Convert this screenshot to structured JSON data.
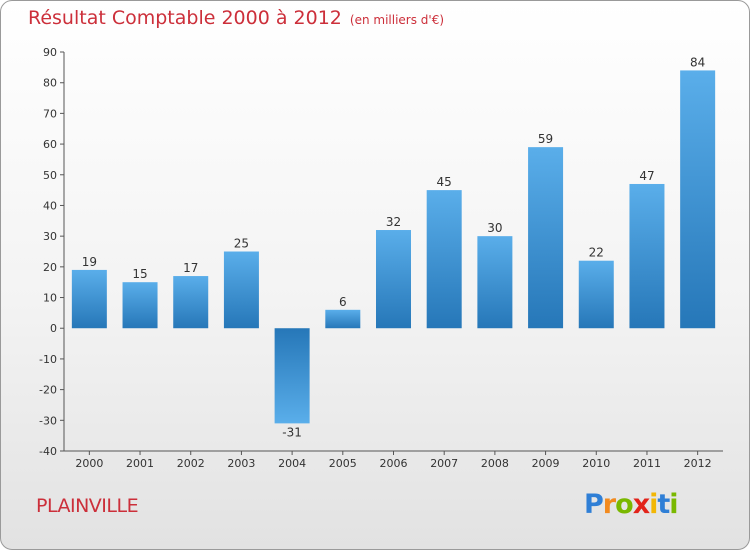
{
  "chart_data": {
    "type": "bar",
    "title": "Résultat Comptable 2000 à 2012",
    "subtitle": "(en milliers d'€)",
    "categories": [
      "2000",
      "2001",
      "2002",
      "2003",
      "2004",
      "2005",
      "2006",
      "2007",
      "2008",
      "2009",
      "2010",
      "2011",
      "2012"
    ],
    "values": [
      19,
      15,
      17,
      25,
      -31,
      6,
      32,
      45,
      30,
      59,
      22,
      47,
      84
    ],
    "ylim": [
      -40,
      90
    ],
    "yticks": [
      90,
      80,
      70,
      60,
      50,
      40,
      30,
      20,
      10,
      0,
      -10,
      -20,
      -30,
      -40
    ],
    "grid": false,
    "xlabel": "",
    "ylabel": ""
  },
  "place_name": "PLAINVILLE",
  "logo": {
    "letters": [
      "P",
      "r",
      "o",
      "x",
      "i",
      "t",
      "i"
    ],
    "colors": [
      "#2f7fd6",
      "#f28a1e",
      "#7ab800",
      "#e2231a",
      "#f2b705",
      "#2f7fd6",
      "#7ab800"
    ]
  },
  "colors": {
    "bar_light": "#5aaeea",
    "bar_dark": "#2677b8",
    "title": "#cc2f3a"
  }
}
